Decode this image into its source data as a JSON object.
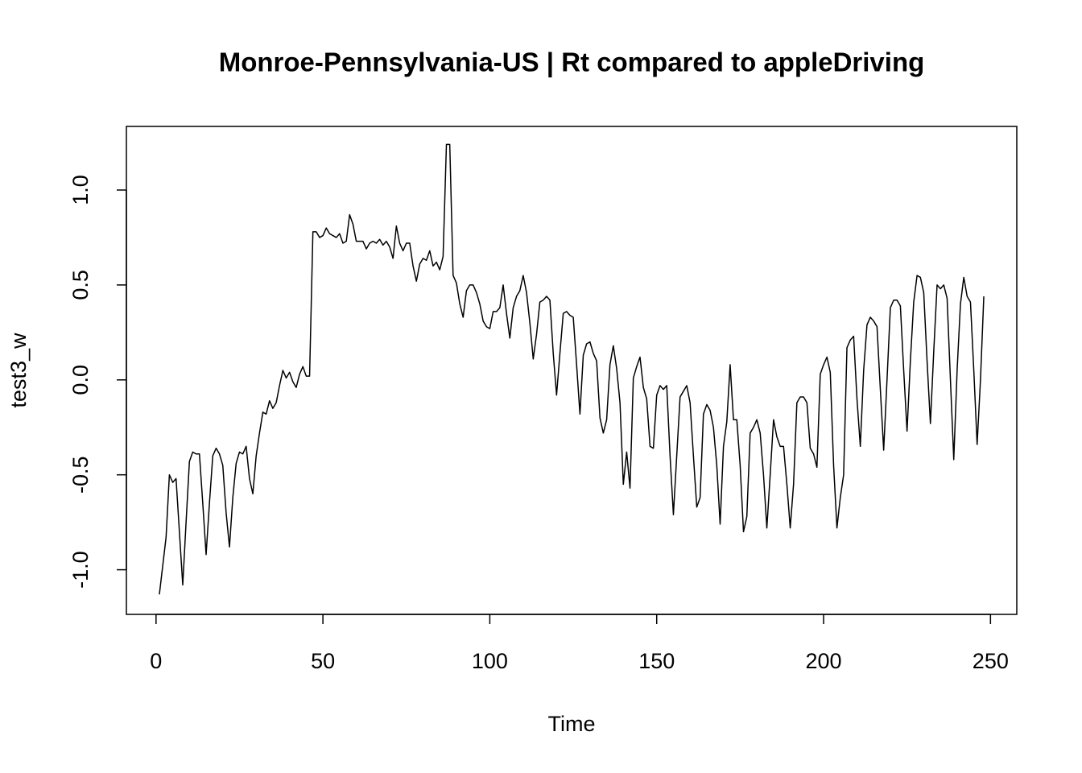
{
  "chart_data": {
    "type": "line",
    "title": "Monroe-Pennsylvania-US | Rt compared to appleDriving",
    "x_label": "Time",
    "y_label": "test3_w",
    "x": [
      1,
      2,
      3,
      4,
      5,
      6,
      7,
      8,
      9,
      10,
      11,
      12,
      13,
      14,
      15,
      16,
      17,
      18,
      19,
      20,
      21,
      22,
      23,
      24,
      25,
      26,
      27,
      28,
      29,
      30,
      31,
      32,
      33,
      34,
      35,
      36,
      37,
      38,
      39,
      40,
      41,
      42,
      43,
      44,
      45,
      46,
      47,
      48,
      49,
      50,
      51,
      52,
      53,
      54,
      55,
      56,
      57,
      58,
      59,
      60,
      61,
      62,
      63,
      64,
      65,
      66,
      67,
      68,
      69,
      70,
      71,
      72,
      73,
      74,
      75,
      76,
      77,
      78,
      79,
      80,
      81,
      82,
      83,
      84,
      85,
      86,
      87,
      88,
      89,
      90,
      91,
      92,
      93,
      94,
      95,
      96,
      97,
      98,
      99,
      100,
      101,
      102,
      103,
      104,
      105,
      106,
      107,
      108,
      109,
      110,
      111,
      112,
      113,
      114,
      115,
      116,
      117,
      118,
      119,
      120,
      121,
      122,
      123,
      124,
      125,
      126,
      127,
      128,
      129,
      130,
      131,
      132,
      133,
      134,
      135,
      136,
      137,
      138,
      139,
      140,
      141,
      142,
      143,
      144,
      145,
      146,
      147,
      148,
      149,
      150,
      151,
      152,
      153,
      154,
      155,
      156,
      157,
      158,
      159,
      160,
      161,
      162,
      163,
      164,
      165,
      166,
      167,
      168,
      169,
      170,
      171,
      172,
      173,
      174,
      175,
      176,
      177,
      178,
      179,
      180,
      181,
      182,
      183,
      184,
      185,
      186,
      187,
      188,
      189,
      190,
      191,
      192,
      193,
      194,
      195,
      196,
      197,
      198,
      199,
      200,
      201,
      202,
      203,
      204,
      205,
      206,
      207,
      208,
      209,
      210,
      211,
      212,
      213,
      214,
      215,
      216,
      217,
      218,
      219,
      220,
      221,
      222,
      223,
      224,
      225,
      226,
      227,
      228,
      229,
      230,
      231,
      232,
      233,
      234,
      235,
      236,
      237,
      238,
      239,
      240,
      241,
      242,
      243,
      244,
      245,
      246,
      247,
      248
    ],
    "series": [
      {
        "name": "test3_w",
        "color": "#000000",
        "values": [
          -1.13,
          -0.98,
          -0.83,
          -0.5,
          -0.54,
          -0.52,
          -0.8,
          -1.08,
          -0.75,
          -0.43,
          -0.38,
          -0.39,
          -0.39,
          -0.65,
          -0.92,
          -0.65,
          -0.4,
          -0.36,
          -0.39,
          -0.45,
          -0.7,
          -0.88,
          -0.62,
          -0.44,
          -0.38,
          -0.39,
          -0.35,
          -0.52,
          -0.6,
          -0.4,
          -0.28,
          -0.17,
          -0.18,
          -0.11,
          -0.15,
          -0.12,
          -0.03,
          0.05,
          0.01,
          0.04,
          -0.01,
          -0.04,
          0.03,
          0.07,
          0.02,
          0.02,
          0.78,
          0.78,
          0.75,
          0.76,
          0.8,
          0.77,
          0.76,
          0.75,
          0.77,
          0.72,
          0.73,
          0.87,
          0.82,
          0.73,
          0.73,
          0.73,
          0.69,
          0.72,
          0.73,
          0.72,
          0.74,
          0.71,
          0.73,
          0.7,
          0.64,
          0.81,
          0.72,
          0.68,
          0.72,
          0.72,
          0.6,
          0.52,
          0.61,
          0.64,
          0.63,
          0.68,
          0.6,
          0.62,
          0.58,
          0.65,
          1.24,
          1.24,
          0.55,
          0.51,
          0.4,
          0.33,
          0.47,
          0.5,
          0.5,
          0.46,
          0.4,
          0.31,
          0.28,
          0.27,
          0.36,
          0.36,
          0.38,
          0.5,
          0.35,
          0.22,
          0.38,
          0.44,
          0.47,
          0.55,
          0.46,
          0.3,
          0.11,
          0.24,
          0.41,
          0.42,
          0.44,
          0.42,
          0.14,
          -0.08,
          0.14,
          0.35,
          0.36,
          0.34,
          0.33,
          0.08,
          -0.18,
          0.13,
          0.19,
          0.2,
          0.14,
          0.1,
          -0.2,
          -0.28,
          -0.21,
          0.08,
          0.18,
          0.06,
          -0.12,
          -0.55,
          -0.38,
          -0.57,
          0.01,
          0.07,
          0.12,
          -0.04,
          -0.1,
          -0.35,
          -0.36,
          -0.08,
          -0.03,
          -0.05,
          -0.03,
          -0.4,
          -0.71,
          -0.4,
          -0.09,
          -0.06,
          -0.03,
          -0.12,
          -0.4,
          -0.67,
          -0.62,
          -0.18,
          -0.13,
          -0.16,
          -0.25,
          -0.45,
          -0.76,
          -0.35,
          -0.22,
          0.08,
          -0.21,
          -0.21,
          -0.45,
          -0.8,
          -0.72,
          -0.28,
          -0.25,
          -0.21,
          -0.28,
          -0.5,
          -0.78,
          -0.5,
          -0.21,
          -0.3,
          -0.35,
          -0.35,
          -0.55,
          -0.78,
          -0.55,
          -0.12,
          -0.09,
          -0.09,
          -0.12,
          -0.36,
          -0.39,
          -0.46,
          0.03,
          0.08,
          0.12,
          0.04,
          -0.45,
          -0.78,
          -0.62,
          -0.5,
          0.17,
          0.21,
          0.23,
          -0.1,
          -0.35,
          0.05,
          0.29,
          0.33,
          0.31,
          0.28,
          -0.05,
          -0.37,
          0.0,
          0.38,
          0.42,
          0.42,
          0.39,
          0.05,
          -0.27,
          0.1,
          0.41,
          0.55,
          0.54,
          0.46,
          0.1,
          -0.23,
          0.15,
          0.5,
          0.48,
          0.5,
          0.43,
          0.0,
          -0.42,
          0.05,
          0.4,
          0.54,
          0.44,
          0.41,
          0.05,
          -0.34,
          0.0,
          0.44
        ]
      }
    ],
    "xlim": [
      -8.88,
      257.88
    ],
    "ylim": [
      -1.235,
      1.335
    ],
    "xticks": [
      0,
      50,
      100,
      150,
      200,
      250
    ],
    "yticks": [
      {
        "value": -1.0,
        "label": "-1.0"
      },
      -0.5,
      {
        "value": 0,
        "label": "0.0"
      },
      0.5,
      {
        "value": 1.0,
        "label": "1.0"
      }
    ]
  }
}
